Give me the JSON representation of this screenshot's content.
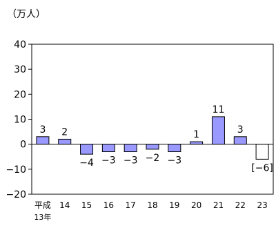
{
  "chart_data": {
    "type": "bar",
    "unit_label": "（万人）",
    "categories": [
      "平成\n13年",
      "14",
      "15",
      "16",
      "17",
      "18",
      "19",
      "20",
      "21",
      "22",
      "23"
    ],
    "values": [
      3,
      2,
      -4,
      -3,
      -3,
      -2,
      -3,
      1,
      11,
      3,
      -6
    ],
    "data_labels": [
      "3",
      "2",
      "−4",
      "−3",
      "−3",
      "−2",
      "−3",
      "1",
      "11",
      "3",
      "[−6]"
    ],
    "hollow_categories": [
      "23"
    ],
    "ylim": [
      -20,
      40
    ],
    "yticks": [
      -20,
      -10,
      0,
      10,
      20,
      30,
      40
    ],
    "ytick_labels": [
      "−20",
      "−10",
      "0",
      "10",
      "20",
      "30",
      "40"
    ],
    "grid": false,
    "legend": "none",
    "colors": {
      "bar_fill": "#9999ff",
      "bar_stroke": "#000000",
      "hollow_fill": "#ffffff",
      "axis": "#000000"
    }
  }
}
